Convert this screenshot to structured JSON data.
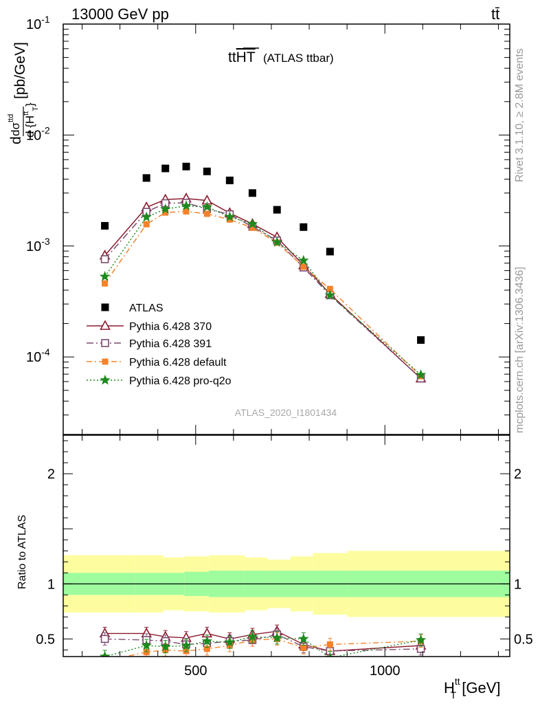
{
  "header": {
    "energy_label": "13000 GeV pp",
    "process_label": "tt̄"
  },
  "side": {
    "rivet_label": "Rivet 3.1.10, ≥ 2.8M events",
    "mcplots_label": "mcplots.cern.ch [arXiv:1306.3436]"
  },
  "colors": {
    "ATLAS": "#000000",
    "p370": "#8b1a2e",
    "p391": "#7a4a6e",
    "default": "#f5822a",
    "proq2o": "#1e8a1e",
    "band_yellow": "#fdfda0",
    "band_green": "#9efc9e"
  },
  "chart_data": [
    {
      "type": "scatter",
      "title_main": "tt",
      "title_over": "HT",
      "title_suffix": "(ATLAS ttbar)",
      "watermark": "ATLAS_2020_I1801434",
      "ylabel": "d σ^{tt}/ d {H_T^{tt}} [pb/GeV]",
      "yscale": "log",
      "xlim": [
        150,
        1330
      ],
      "ylim": [
        2e-05,
        0.1
      ],
      "y_tick_labels": [
        "10^{-4}",
        "10^{-3}",
        "10^{-2}",
        "10^{-1}"
      ],
      "legend_position": "center-left",
      "x": [
        260,
        370,
        420,
        475,
        530,
        590,
        650,
        715,
        785,
        855,
        1095
      ],
      "series": [
        {
          "name": "ATLAS",
          "marker": "square",
          "values": [
            0.00152,
            0.0041,
            0.005,
            0.0052,
            0.0047,
            0.0039,
            0.003,
            0.00212,
            0.00148,
            0.00089,
            0.000142
          ]
        },
        {
          "name": "Pythia 6.428 370",
          "marker": "triangle-open",
          "values": [
            0.00082,
            0.00223,
            0.00262,
            0.00268,
            0.00257,
            0.00198,
            0.00158,
            0.0012,
            0.00067,
            0.00037,
            6.4e-05
          ]
        },
        {
          "name": "Pythia 6.428 391",
          "marker": "square-open",
          "values": [
            0.00076,
            0.00203,
            0.00243,
            0.00245,
            0.00215,
            0.00193,
            0.00149,
            0.00112,
            0.00064,
            0.00036,
            6.4e-05
          ]
        },
        {
          "name": "Pythia 6.428 default",
          "marker": "square-filled",
          "values": [
            0.00046,
            0.00157,
            0.002,
            0.00205,
            0.00195,
            0.00173,
            0.00146,
            0.00107,
            0.00065,
            0.00041,
            6.7e-05
          ]
        },
        {
          "name": "Pythia 6.428 pro-q2o",
          "marker": "star",
          "values": [
            0.00053,
            0.00182,
            0.00215,
            0.0023,
            0.00225,
            0.00183,
            0.00158,
            0.00108,
            0.00074,
            0.00036,
            6.9e-05
          ]
        }
      ]
    },
    {
      "type": "scatter",
      "ylabel": "Ratio to ATLAS",
      "xlabel": "H_T^{tt} [GeV]",
      "xlim": [
        150,
        1330
      ],
      "ylim": [
        0.34,
        2.35
      ],
      "x_ticks": [
        500,
        1000
      ],
      "y_ticks": [
        0.5,
        1,
        2
      ],
      "bins": [
        150,
        340,
        415,
        470,
        535,
        630,
        690,
        750,
        810,
        900,
        1330
      ],
      "band_yellow_half": [
        0.26,
        0.26,
        0.24,
        0.25,
        0.26,
        0.24,
        0.22,
        0.25,
        0.28,
        0.3
      ],
      "band_green_half": [
        0.1,
        0.1,
        0.1,
        0.11,
        0.12,
        0.12,
        0.12,
        0.12,
        0.12,
        0.12
      ],
      "x": [
        260,
        370,
        420,
        475,
        530,
        590,
        650,
        715,
        785,
        855,
        1095
      ],
      "series": [
        {
          "name": "Pythia 6.428 370",
          "values": [
            0.55,
            0.55,
            0.52,
            0.51,
            0.55,
            0.5,
            0.54,
            0.57,
            0.45,
            0.39,
            0.44
          ]
        },
        {
          "name": "Pythia 6.428 391",
          "values": [
            0.5,
            0.49,
            0.48,
            0.45,
            0.46,
            0.48,
            0.49,
            0.54,
            0.43,
            0.39,
            0.41
          ]
        },
        {
          "name": "Pythia 6.428 default",
          "values": [
            0.3,
            0.38,
            0.4,
            0.39,
            0.41,
            0.44,
            0.49,
            0.5,
            0.42,
            0.45,
            0.48
          ]
        },
        {
          "name": "Pythia 6.428 pro-q2o",
          "values": [
            0.34,
            0.44,
            0.43,
            0.44,
            0.48,
            0.47,
            0.52,
            0.51,
            0.5,
            0.33,
            0.49
          ]
        }
      ]
    }
  ]
}
